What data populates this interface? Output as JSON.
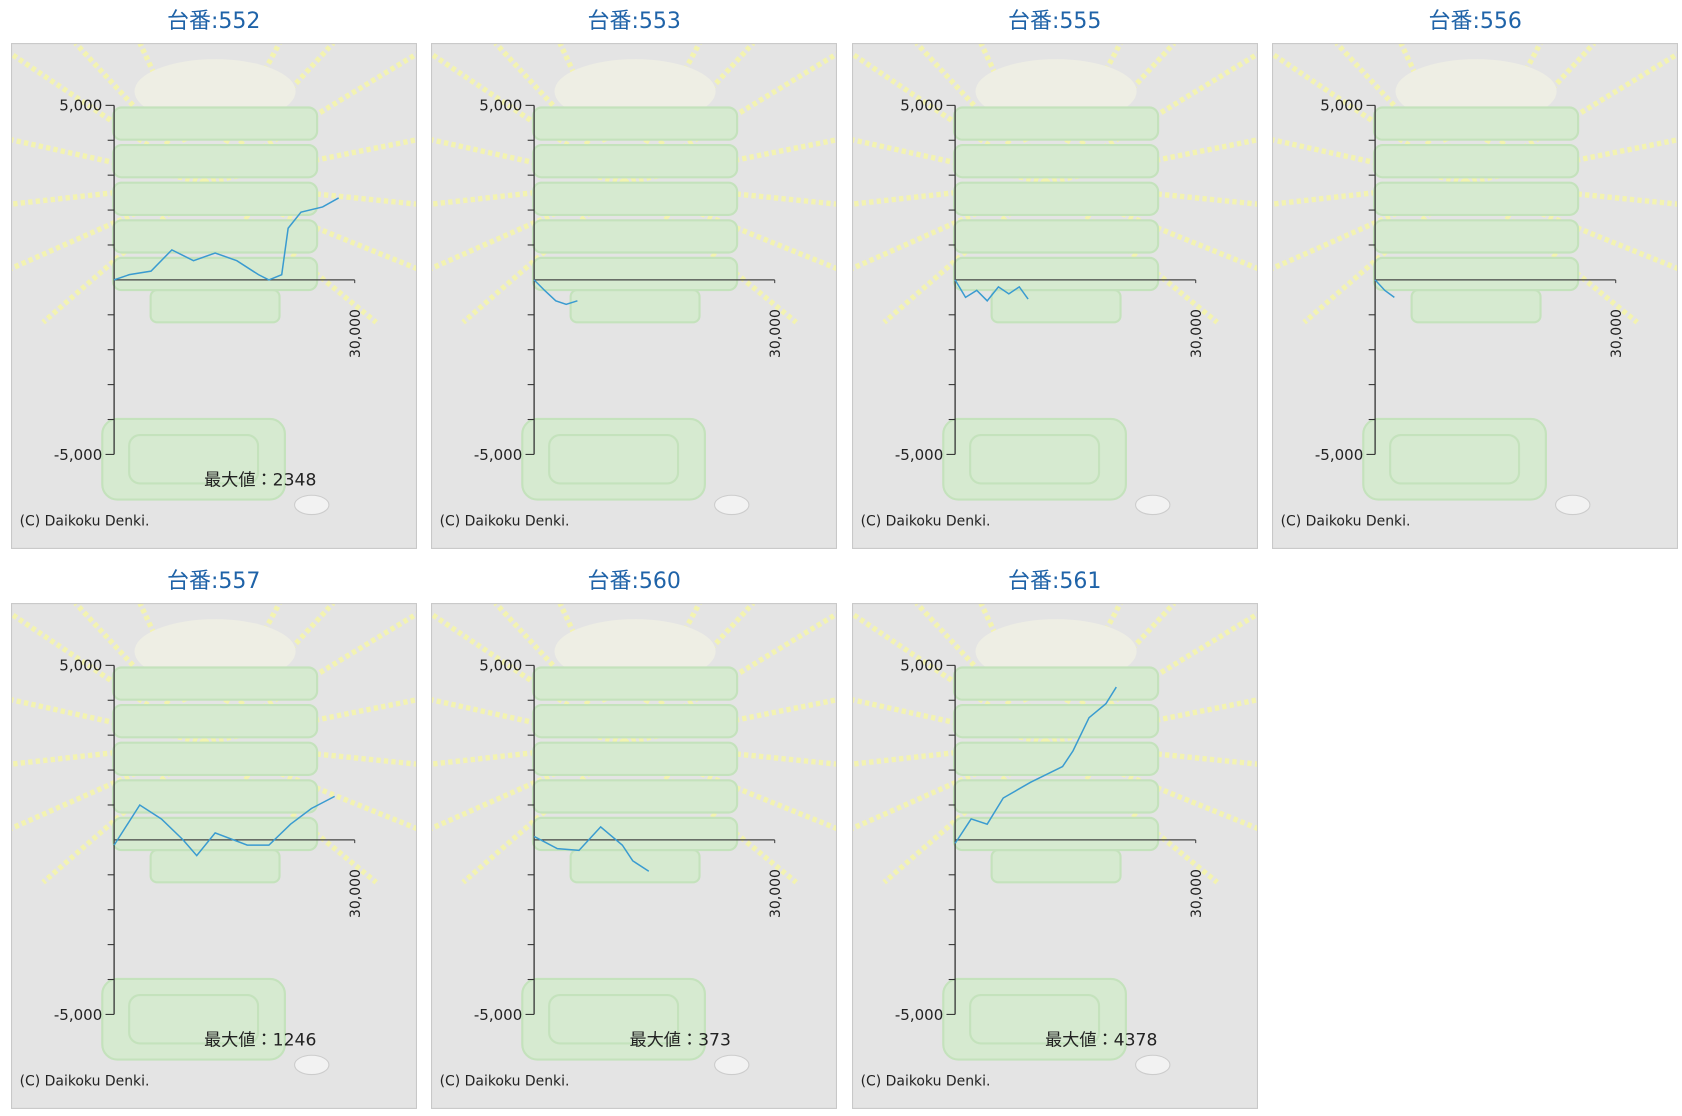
{
  "chart_data": [
    {
      "type": "line",
      "title": "台番:552",
      "color": "#3a9bd0",
      "x": [
        0,
        1900,
        4600,
        7200,
        9900,
        12600,
        15300,
        18000,
        19300,
        20900,
        21700,
        23300,
        26000,
        28000
      ],
      "values": [
        0,
        150,
        250,
        860,
        550,
        770,
        550,
        150,
        0,
        150,
        1480,
        1940,
        2090,
        2348
      ],
      "xlim": [
        0,
        30000
      ],
      "xticks": [
        {
          "value": 30000,
          "label": "30,000"
        }
      ],
      "ylim": [
        -5000,
        5000
      ],
      "yticks": [
        {
          "value": 5000,
          "label": "5,000"
        },
        {
          "value": -5000,
          "label": "-5,000"
        }
      ],
      "yminorticks": [
        4000,
        3000,
        2000,
        1000,
        -1000,
        -2000,
        -3000,
        -4000
      ],
      "annotation": "最大値：2348",
      "credit": "(C) Daikoku Denki."
    },
    {
      "type": "line",
      "title": "台番:553",
      "color": "#3a9bd0",
      "x": [
        0,
        1300,
        2700,
        4000,
        5400
      ],
      "values": [
        0,
        -300,
        -600,
        -700,
        -600
      ],
      "xlim": [
        0,
        30000
      ],
      "xticks": [
        {
          "value": 30000,
          "label": "30,000"
        }
      ],
      "ylim": [
        -5000,
        5000
      ],
      "yticks": [
        {
          "value": 5000,
          "label": "5,000"
        },
        {
          "value": -5000,
          "label": "-5,000"
        }
      ],
      "yminorticks": [
        4000,
        3000,
        2000,
        1000,
        -1000,
        -2000,
        -3000,
        -4000
      ],
      "credit": "(C) Daikoku Denki."
    },
    {
      "type": "line",
      "title": "台番:555",
      "color": "#3a9bd0",
      "x": [
        0,
        1300,
        2700,
        4000,
        5400,
        6700,
        8000,
        9100
      ],
      "values": [
        0,
        -500,
        -300,
        -600,
        -200,
        -400,
        -200,
        -550
      ],
      "xlim": [
        0,
        30000
      ],
      "xticks": [
        {
          "value": 30000,
          "label": "30,000"
        }
      ],
      "ylim": [
        -5000,
        5000
      ],
      "yticks": [
        {
          "value": 5000,
          "label": "5,000"
        },
        {
          "value": -5000,
          "label": "-5,000"
        }
      ],
      "yminorticks": [
        4000,
        3000,
        2000,
        1000,
        -1000,
        -2000,
        -3000,
        -4000
      ],
      "credit": "(C) Daikoku Denki."
    },
    {
      "type": "line",
      "title": "台番:556",
      "color": "#3a9bd0",
      "x": [
        0,
        1200,
        2400
      ],
      "values": [
        0,
        -300,
        -500
      ],
      "xlim": [
        0,
        30000
      ],
      "xticks": [
        {
          "value": 30000,
          "label": "30,000"
        }
      ],
      "ylim": [
        -5000,
        5000
      ],
      "yticks": [
        {
          "value": 5000,
          "label": "5,000"
        },
        {
          "value": -5000,
          "label": "-5,000"
        }
      ],
      "yminorticks": [
        4000,
        3000,
        2000,
        1000,
        -1000,
        -2000,
        -3000,
        -4000
      ],
      "credit": "(C) Daikoku Denki."
    },
    {
      "type": "line",
      "title": "台番:557",
      "color": "#3a9bd0",
      "x": [
        0,
        3200,
        5900,
        8600,
        10300,
        12600,
        16600,
        19300,
        22000,
        24600,
        27500
      ],
      "values": [
        -150,
        1000,
        600,
        0,
        -450,
        200,
        -150,
        -150,
        450,
        900,
        1246
      ],
      "xlim": [
        0,
        30000
      ],
      "xticks": [
        {
          "value": 30000,
          "label": "30,000"
        }
      ],
      "ylim": [
        -5000,
        5000
      ],
      "yticks": [
        {
          "value": 5000,
          "label": "5,000"
        },
        {
          "value": -5000,
          "label": "-5,000"
        }
      ],
      "yminorticks": [
        4000,
        3000,
        2000,
        1000,
        -1000,
        -2000,
        -3000,
        -4000
      ],
      "annotation": "最大値：1246",
      "credit": "(C) Daikoku Denki."
    },
    {
      "type": "line",
      "title": "台番:560",
      "color": "#3a9bd0",
      "x": [
        0,
        2900,
        5600,
        8300,
        11000,
        12300,
        14300
      ],
      "values": [
        100,
        -250,
        -300,
        373,
        -150,
        -600,
        -900
      ],
      "xlim": [
        0,
        30000
      ],
      "xticks": [
        {
          "value": 30000,
          "label": "30,000"
        }
      ],
      "ylim": [
        -5000,
        5000
      ],
      "yticks": [
        {
          "value": 5000,
          "label": "5,000"
        },
        {
          "value": -5000,
          "label": "-5,000"
        }
      ],
      "yminorticks": [
        4000,
        3000,
        2000,
        1000,
        -1000,
        -2000,
        -3000,
        -4000
      ],
      "annotation": "最大値：373",
      "credit": "(C) Daikoku Denki."
    },
    {
      "type": "line",
      "title": "台番:561",
      "color": "#3a9bd0",
      "x": [
        0,
        2000,
        4000,
        6000,
        9400,
        13400,
        14700,
        16700,
        18800,
        20100
      ],
      "values": [
        -100,
        600,
        450,
        1200,
        1650,
        2100,
        2550,
        3500,
        3900,
        4378
      ],
      "xlim": [
        0,
        30000
      ],
      "xticks": [
        {
          "value": 30000,
          "label": "30,000"
        }
      ],
      "ylim": [
        -5000,
        5000
      ],
      "yticks": [
        {
          "value": 5000,
          "label": "5,000"
        },
        {
          "value": -5000,
          "label": "-5,000"
        }
      ],
      "yminorticks": [
        4000,
        3000,
        2000,
        1000,
        -1000,
        -2000,
        -3000,
        -4000
      ],
      "annotation": "最大値：4378",
      "credit": "(C) Daikoku Denki."
    }
  ]
}
